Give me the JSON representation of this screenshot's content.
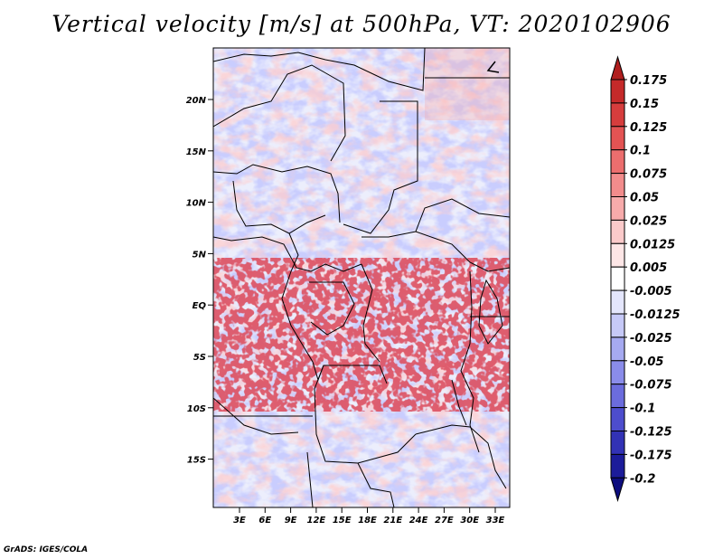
{
  "title": "Vertical velocity [m/s] at 500hPa, VT: 2020102906",
  "footer": "GrADS: IGES/COLA",
  "lat_labels": [
    "20N",
    "15N",
    "10N",
    "5N",
    "EQ",
    "5S",
    "10S",
    "15S"
  ],
  "lon_labels": [
    "3E",
    "6E",
    "9E",
    "12E",
    "15E",
    "18E",
    "21E",
    "24E",
    "27E",
    "30E",
    "33E"
  ],
  "colorbar": {
    "labels": [
      "0.175",
      "0.15",
      "0.125",
      "0.1",
      "0.075",
      "0.05",
      "0.025",
      "0.0125",
      "0.005",
      "-0.005",
      "-0.0125",
      "-0.025",
      "-0.05",
      "-0.075",
      "-0.1",
      "-0.125",
      "-0.175",
      "-0.2"
    ],
    "colors": [
      "#b01e1e",
      "#c52a2a",
      "#d63d3d",
      "#e35353",
      "#ec6e6e",
      "#f28c8c",
      "#f7abab",
      "#fbcaca",
      "#fde6e6",
      "#ffffff",
      "#e4e6fc",
      "#c6c9f7",
      "#a6aaf1",
      "#8a8cea",
      "#6b6cdd",
      "#4d4dcd",
      "#3232b5",
      "#1c1c9a",
      "#0d0d7e"
    ]
  }
}
